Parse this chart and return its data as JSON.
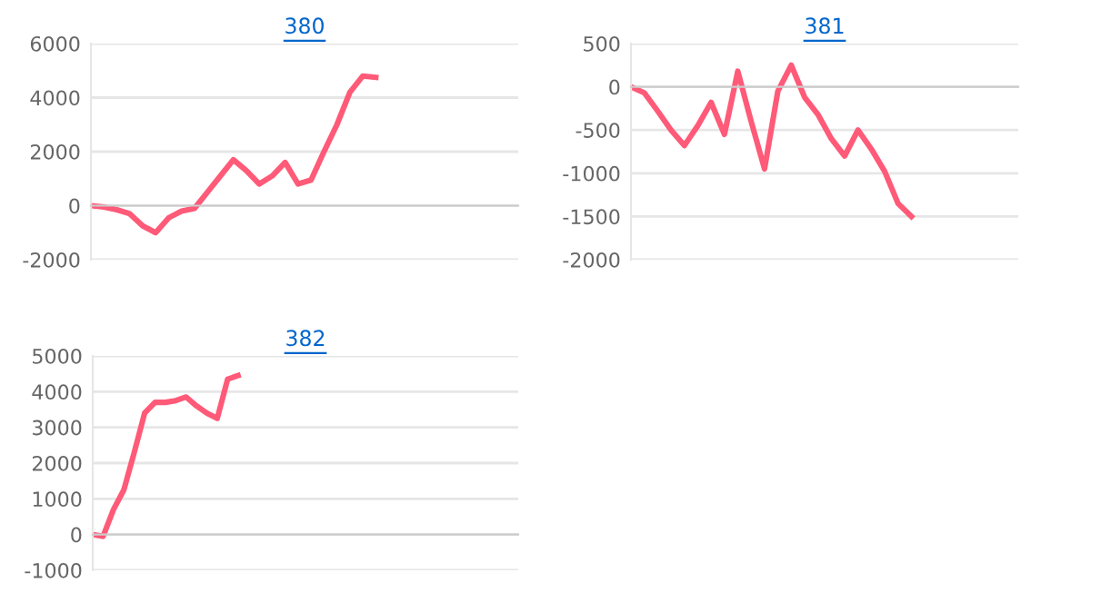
{
  "chart_data": [
    {
      "type": "line",
      "title": "380",
      "categories": [
        null,
        null,
        null,
        null,
        null,
        null,
        null,
        null,
        null,
        null,
        null,
        null,
        null,
        null,
        null,
        null,
        null,
        null,
        null,
        null,
        null,
        null,
        null,
        null,
        null,
        null,
        null,
        null,
        null,
        null,
        null,
        null,
        null,
        null
      ],
      "series": [
        {
          "color": "#ff5a78",
          "values": [
            0,
            -50,
            -150,
            -300,
            -750,
            -1000,
            -450,
            -200,
            -100,
            500,
            1100,
            1700,
            1300,
            800,
            1100,
            1600,
            800,
            950,
            2000,
            3000,
            4200,
            4800,
            4750,
            null,
            null,
            null,
            null,
            null,
            null,
            null,
            null,
            null,
            null,
            null
          ]
        }
      ],
      "ylim": [
        -2000,
        6000
      ],
      "yticks": [
        -2000,
        0,
        2000,
        4000,
        6000
      ],
      "grid": "y",
      "marker": "none",
      "line_style": "solid"
    },
    {
      "type": "line",
      "title": "381",
      "categories": [
        null,
        null,
        null,
        null,
        null,
        null,
        null,
        null,
        null,
        null,
        null,
        null,
        null,
        null,
        null,
        null,
        null,
        null,
        null,
        null,
        null,
        null,
        null,
        null,
        null,
        null,
        null,
        null,
        null,
        null
      ],
      "series": [
        {
          "color": "#ff5a78",
          "values": [
            0,
            -70,
            -280,
            -500,
            -680,
            -450,
            -180,
            -550,
            180,
            -400,
            -950,
            -50,
            250,
            -120,
            -320,
            -600,
            -800,
            -500,
            -720,
            -980,
            -1350,
            -1500,
            null,
            null,
            null,
            null,
            null,
            null,
            null,
            null
          ]
        }
      ],
      "ylim": [
        -2000,
        500
      ],
      "yticks": [
        -2000,
        -1500,
        -1000,
        -500,
        0,
        500
      ],
      "grid": "y",
      "marker": "none",
      "line_style": "solid"
    },
    {
      "type": "line",
      "title": "382",
      "categories": [
        null,
        null,
        null,
        null,
        null,
        null,
        null,
        null,
        null,
        null,
        null,
        null,
        null,
        null,
        null,
        null,
        null,
        null,
        null,
        null,
        null,
        null,
        null,
        null,
        null,
        null,
        null,
        null,
        null,
        null,
        null,
        null,
        null,
        null,
        null,
        null,
        null,
        null,
        null,
        null,
        null,
        null
      ],
      "series": [
        {
          "color": "#ff5a78",
          "values": [
            0,
            -50,
            700,
            1250,
            2300,
            3400,
            3700,
            3700,
            3750,
            3850,
            3600,
            3400,
            3250,
            4350,
            4450,
            null,
            null,
            null,
            null,
            null,
            null,
            null,
            null,
            null,
            null,
            null,
            null,
            null,
            null,
            null,
            null,
            null,
            null,
            null,
            null,
            null,
            null,
            null,
            null,
            null,
            null,
            null
          ]
        }
      ],
      "ylim": [
        -1000,
        5000
      ],
      "yticks": [
        -1000,
        0,
        1000,
        2000,
        3000,
        4000,
        5000
      ],
      "grid": "y",
      "marker": "none",
      "line_style": "solid"
    }
  ]
}
